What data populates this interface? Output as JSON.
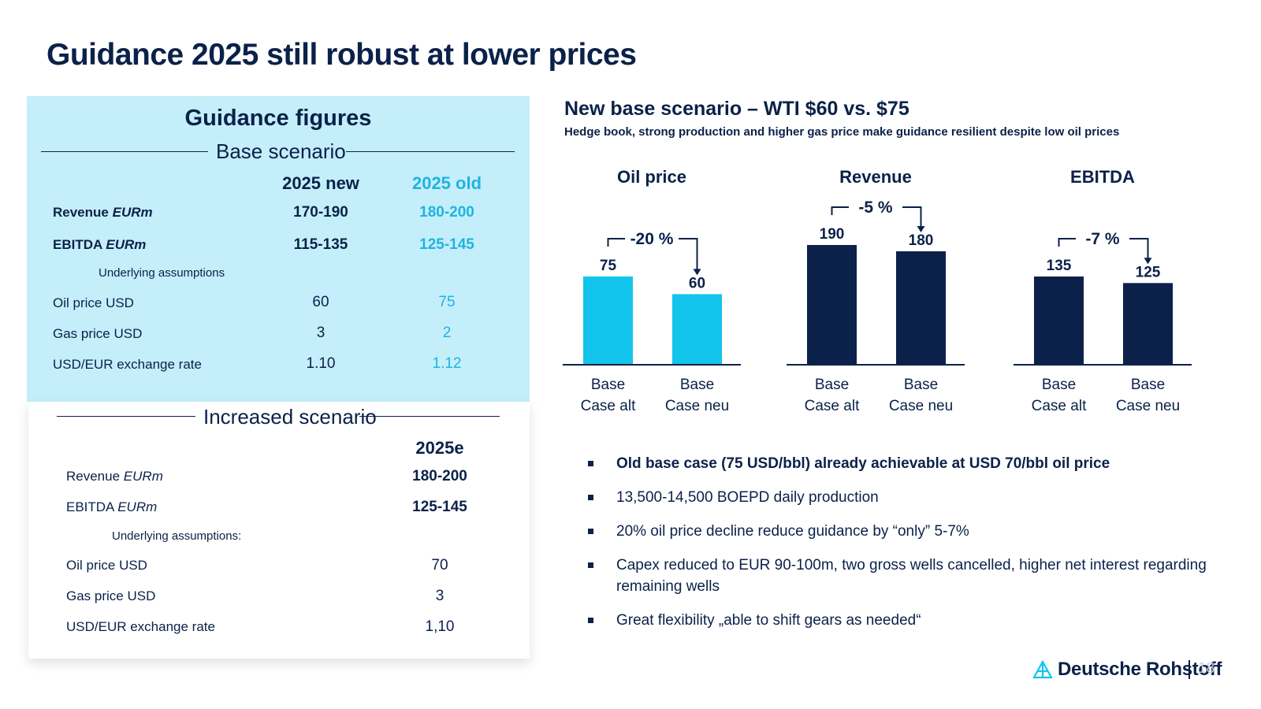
{
  "title": "Guidance 2025 still robust at lower prices",
  "guidance": {
    "heading": "Guidance figures",
    "base": {
      "label": "Base scenario",
      "col_new": "2025 new",
      "col_old": "2025 old",
      "rows": [
        {
          "label": "Revenue",
          "unit": "EURm",
          "new": "170-190",
          "old": "180-200"
        },
        {
          "label": "EBITDA",
          "unit": "EURm",
          "new": "115-135",
          "old": "125-145"
        }
      ],
      "assumptions_label": "Underlying assumptions",
      "assumptions": [
        {
          "label": "Oil price  USD",
          "new": "60",
          "old": "75"
        },
        {
          "label": "Gas price  USD",
          "new": "3",
          "old": "2"
        },
        {
          "label": "USD/EUR exchange rate",
          "new": "1.10",
          "old": "1.12"
        }
      ]
    },
    "increased": {
      "label": "Increased scenario",
      "col": "2025e",
      "rows": [
        {
          "label": "Revenue",
          "unit": "EURm",
          "value": "180-200"
        },
        {
          "label": "EBITDA",
          "unit": "EURm",
          "value": "125-145"
        }
      ],
      "assumptions_label": "Underlying assumptions:",
      "assumptions": [
        {
          "label": "Oil price  USD",
          "value": "70"
        },
        {
          "label": "Gas price  USD",
          "value": "3"
        },
        {
          "label": "USD/EUR exchange rate",
          "value": "1,10"
        }
      ]
    }
  },
  "right": {
    "title": "New base scenario – WTI $60 vs. $75",
    "subtitle": "Hedge book, strong production and higher gas price make guidance resilient despite low oil prices"
  },
  "chart_data": [
    {
      "type": "bar",
      "title": "Oil price",
      "categories": [
        "Base Case alt",
        "Base Case neu"
      ],
      "category_lines": [
        [
          "Base",
          "Case alt"
        ],
        [
          "Base",
          "Case neu"
        ]
      ],
      "values": [
        75,
        60
      ],
      "data_labels": [
        "75",
        "60"
      ],
      "change_label": "-20 %",
      "color": "#12c4ec"
    },
    {
      "type": "bar",
      "title": "Revenue",
      "categories": [
        "Base Case alt",
        "Base Case neu"
      ],
      "category_lines": [
        [
          "Base",
          "Case alt"
        ],
        [
          "Base",
          "Case neu"
        ]
      ],
      "values": [
        190,
        180
      ],
      "data_labels": [
        "190",
        "180"
      ],
      "change_label": "-5 %",
      "color": "#0b2149"
    },
    {
      "type": "bar",
      "title": "EBITDA",
      "categories": [
        "Base Case alt",
        "Base Case neu"
      ],
      "category_lines": [
        [
          "Base",
          "Case alt"
        ],
        [
          "Base",
          "Case neu"
        ]
      ],
      "values": [
        135,
        125
      ],
      "data_labels": [
        "135",
        "125"
      ],
      "change_label": "-7 %",
      "color": "#0b2149"
    }
  ],
  "bullets": [
    "Old base case (75 USD/bbl) already achievable at USD 70/bbl oil price",
    "13,500-14,500 BOEPD daily production",
    "20% oil price decline reduce guidance by “only” 5-7%",
    "Capex reduced to EUR 90-100m, two gross wells cancelled, higher net interest regarding remaining wells",
    "Great flexibility „able to shift gears as needed“"
  ],
  "footer": {
    "brand": "Deutsche Rohstoff",
    "page": "18",
    "logo_icon": "deutsche-rohstoff-logo-icon"
  }
}
